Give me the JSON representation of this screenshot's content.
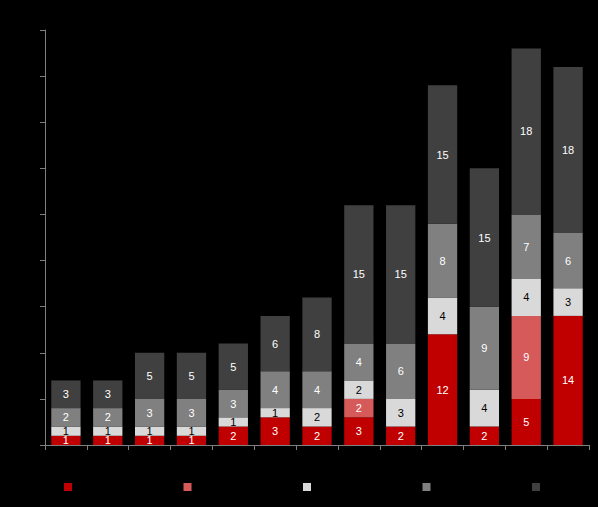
{
  "chart_data": {
    "type": "bar",
    "stacked": true,
    "data_labels": true,
    "grid": false,
    "tick_labels": false,
    "legend": "bottom",
    "categories": [
      null,
      null,
      null,
      null,
      null,
      null,
      null,
      null,
      null,
      null,
      null,
      null,
      null
    ],
    "ylim": [
      0,
      45
    ],
    "yticks": [
      0,
      5,
      10,
      15,
      20,
      25,
      30,
      35,
      40,
      45
    ],
    "series": [
      {
        "color": "#c00000",
        "values": [
          1,
          1,
          1,
          1,
          2,
          3,
          2,
          3,
          2,
          12,
          2,
          5,
          14
        ]
      },
      {
        "color": "#d65a5a",
        "values": [
          null,
          null,
          null,
          null,
          null,
          null,
          null,
          2,
          null,
          null,
          null,
          9,
          null
        ]
      },
      {
        "color": "#d9d9d9",
        "values": [
          1,
          1,
          1,
          1,
          1,
          1,
          2,
          2,
          3,
          4,
          4,
          4,
          3
        ]
      },
      {
        "color": "#808080",
        "values": [
          2,
          2,
          3,
          3,
          3,
          4,
          4,
          4,
          6,
          8,
          9,
          7,
          6
        ]
      },
      {
        "color": "#404040",
        "values": [
          3,
          3,
          5,
          5,
          5,
          6,
          8,
          15,
          15,
          15,
          15,
          18,
          18
        ]
      }
    ]
  }
}
